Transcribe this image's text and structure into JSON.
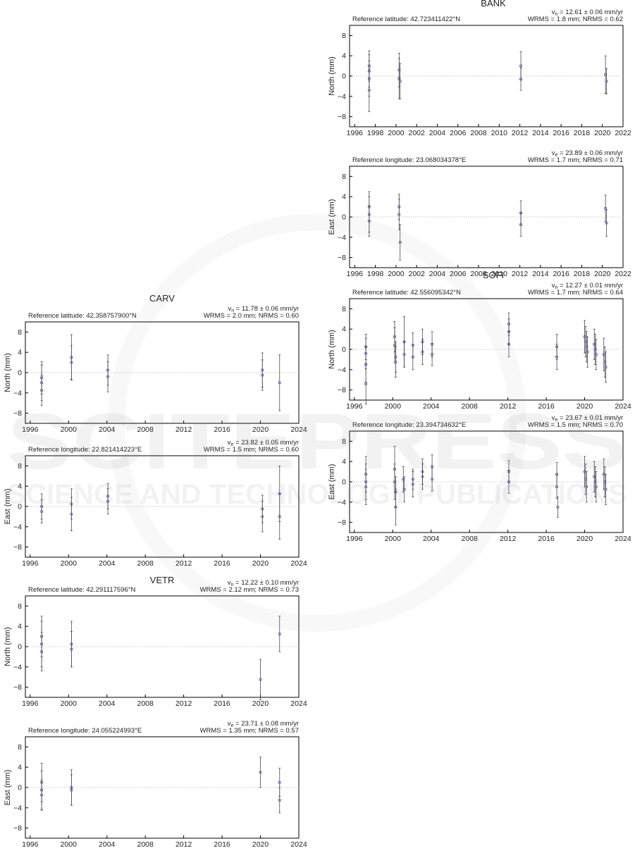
{
  "colors": {
    "point": "#6a56c9",
    "errorbar": "#333333",
    "zero_line": "#bdbdbd",
    "frame": "#000000",
    "grid": "#e2e2e2"
  },
  "watermark": {
    "line1": "SCITEPRESS",
    "line2": "SCIENCE AND TECHNOLOGY PUBLICATIONS"
  },
  "chart_data": [
    {
      "id": "bank-north",
      "station": "BANK",
      "type": "scatter",
      "ref_text": "Reference latitude: 42.723411422°N",
      "vel_prefix": "v",
      "vel_sub": "n",
      "vel_text": " = 12.61 ± 0.06 mm/yr",
      "stats_text": "WRMS = 1.8 mm; NRMS = 0.62",
      "ylabel": "North (mm)",
      "xlim": [
        1995.5,
        2022
      ],
      "ylim": [
        -10,
        10
      ],
      "xticks": [
        1996,
        1998,
        2000,
        2002,
        2004,
        2006,
        2008,
        2010,
        2012,
        2014,
        2016,
        2018,
        2020,
        2022
      ],
      "yticks": [
        8,
        4,
        0,
        -4,
        -8
      ],
      "points": [
        {
          "x": 1997.4,
          "y": 2.0,
          "err": 3.0
        },
        {
          "x": 1997.4,
          "y": 1.0,
          "err": 3.2
        },
        {
          "x": 1997.4,
          "y": -0.5,
          "err": 3.5
        },
        {
          "x": 1997.4,
          "y": -2.8,
          "err": 4.2
        },
        {
          "x": 2000.3,
          "y": -0.5,
          "err": 4.0
        },
        {
          "x": 2000.3,
          "y": 1.2,
          "err": 3.3
        },
        {
          "x": 2000.4,
          "y": -1.0,
          "err": 3.5
        },
        {
          "x": 2012.1,
          "y": 2.0,
          "err": 2.8
        },
        {
          "x": 2012.1,
          "y": -0.6,
          "err": 2.2
        },
        {
          "x": 2020.3,
          "y": 0.3,
          "err": 3.7
        },
        {
          "x": 2020.4,
          "y": -1.0,
          "err": 2.5
        }
      ]
    },
    {
      "id": "bank-east",
      "station": "BANK",
      "type": "scatter",
      "ref_text": "Reference longitude: 23.068034378°E",
      "vel_prefix": "v",
      "vel_sub": "e",
      "vel_text": " = 23.89 ± 0.06 mm/yr",
      "stats_text": "WRMS = 1.7 mm; NRMS = 0.71",
      "ylabel": "East (mm)",
      "xlim": [
        1995.5,
        2022
      ],
      "ylim": [
        -10,
        10
      ],
      "xticks": [
        1996,
        1998,
        2000,
        2002,
        2004,
        2006,
        2008,
        2010,
        2012,
        2014,
        2016,
        2018,
        2020,
        2022
      ],
      "yticks": [
        8,
        4,
        0,
        -4,
        -8
      ],
      "points": [
        {
          "x": 1997.4,
          "y": 2.0,
          "err": 3.0
        },
        {
          "x": 1997.4,
          "y": 0.5,
          "err": 3.5
        },
        {
          "x": 1997.4,
          "y": -0.8,
          "err": 3.0
        },
        {
          "x": 2000.3,
          "y": 2.0,
          "err": 2.5
        },
        {
          "x": 2000.3,
          "y": 0.5,
          "err": 3.0
        },
        {
          "x": 2000.4,
          "y": -5.0,
          "err": 3.5
        },
        {
          "x": 2012.1,
          "y": 0.8,
          "err": 2.4
        },
        {
          "x": 2012.1,
          "y": -1.5,
          "err": 2.3
        },
        {
          "x": 2020.3,
          "y": 1.7,
          "err": 2.6
        },
        {
          "x": 2020.4,
          "y": -1.2,
          "err": 2.6
        }
      ]
    },
    {
      "id": "sofi-north",
      "station": "SOFI",
      "type": "scatter",
      "ref_text": "Reference latitude: 42.556095342°N",
      "vel_prefix": "v",
      "vel_sub": "n",
      "vel_text": " = 12.27 ± 0.01 mm/yr",
      "stats_text": "WRMS = 1.7 mm; NRMS = 0.64",
      "ylabel": "North (mm)",
      "xlim": [
        1995.5,
        2024
      ],
      "ylim": [
        -10,
        10
      ],
      "xticks": [
        1996,
        2000,
        2004,
        2008,
        2012,
        2016,
        2020,
        2024
      ],
      "yticks": [
        8,
        4,
        0,
        -4,
        -8
      ],
      "points": [
        {
          "x": 1997.2,
          "y": 0.5,
          "err": 2.5
        },
        {
          "x": 1997.2,
          "y": -0.8,
          "err": 3.0
        },
        {
          "x": 1997.2,
          "y": -3.0,
          "err": 3.5
        },
        {
          "x": 1997.2,
          "y": -6.8,
          "err": 4.0
        },
        {
          "x": 2000.2,
          "y": 2.5,
          "err": 3.0
        },
        {
          "x": 2000.2,
          "y": 0.8,
          "err": 3.5
        },
        {
          "x": 2000.3,
          "y": -1.5,
          "err": 3.0
        },
        {
          "x": 2000.3,
          "y": -2.5,
          "err": 3.0
        },
        {
          "x": 2001.2,
          "y": 1.5,
          "err": 5.0
        },
        {
          "x": 2001.2,
          "y": -1.0,
          "err": 2.5
        },
        {
          "x": 2002.1,
          "y": 0.8,
          "err": 2.5
        },
        {
          "x": 2002.1,
          "y": -1.5,
          "err": 2.5
        },
        {
          "x": 2003.1,
          "y": 1.5,
          "err": 2.5
        },
        {
          "x": 2003.1,
          "y": -0.5,
          "err": 2.5
        },
        {
          "x": 2004.1,
          "y": 1.0,
          "err": 2.5
        },
        {
          "x": 2004.1,
          "y": -1.0,
          "err": 2.2
        },
        {
          "x": 2012.1,
          "y": 5.0,
          "err": 2.2
        },
        {
          "x": 2012.1,
          "y": 3.5,
          "err": 2.5
        },
        {
          "x": 2012.1,
          "y": 1.0,
          "err": 2.5
        },
        {
          "x": 2017.1,
          "y": 0.5,
          "err": 2.5
        },
        {
          "x": 2017.1,
          "y": -1.5,
          "err": 2.5
        },
        {
          "x": 2020.0,
          "y": 2.5,
          "err": 3.2
        },
        {
          "x": 2020.1,
          "y": 1.5,
          "err": 3.0
        },
        {
          "x": 2020.2,
          "y": 0.5,
          "err": 3.0
        },
        {
          "x": 2020.3,
          "y": -0.5,
          "err": 3.0
        },
        {
          "x": 2021.0,
          "y": 1.0,
          "err": 3.0
        },
        {
          "x": 2021.1,
          "y": 0.0,
          "err": 3.0
        },
        {
          "x": 2021.2,
          "y": -1.0,
          "err": 3.0
        },
        {
          "x": 2022.0,
          "y": -1.0,
          "err": 3.2
        },
        {
          "x": 2022.1,
          "y": -2.5,
          "err": 3.0
        },
        {
          "x": 2022.2,
          "y": -3.5,
          "err": 3.0
        }
      ]
    },
    {
      "id": "sofi-east",
      "station": "SOFI",
      "type": "scatter",
      "ref_text": "Reference longitude: 23.394734632°E",
      "vel_prefix": "v",
      "vel_sub": "e",
      "vel_text": " = 23.67 ± 0.01 mm/yr",
      "stats_text": "WRMS = 1.5 mm; NRMS = 0.70",
      "ylabel": "East (mm)",
      "xlim": [
        1995.5,
        2024
      ],
      "ylim": [
        -10,
        10
      ],
      "xticks": [
        1996,
        2000,
        2004,
        2008,
        2012,
        2016,
        2020,
        2024
      ],
      "yticks": [
        8,
        4,
        0,
        -4,
        -8
      ],
      "points": [
        {
          "x": 1997.2,
          "y": 1.5,
          "err": 3.5
        },
        {
          "x": 1997.2,
          "y": 0.0,
          "err": 3.5
        },
        {
          "x": 1997.2,
          "y": -1.0,
          "err": 3.5
        },
        {
          "x": 2000.2,
          "y": 2.5,
          "err": 4.5
        },
        {
          "x": 2000.2,
          "y": 0.0,
          "err": 3.5
        },
        {
          "x": 2000.3,
          "y": -2.0,
          "err": 3.0
        },
        {
          "x": 2000.3,
          "y": -5.0,
          "err": 3.5
        },
        {
          "x": 2001.1,
          "y": 0.5,
          "err": 2.5
        },
        {
          "x": 2001.2,
          "y": -1.5,
          "err": 2.5
        },
        {
          "x": 2002.1,
          "y": 0.5,
          "err": 2.0
        },
        {
          "x": 2002.1,
          "y": -0.5,
          "err": 2.5
        },
        {
          "x": 2003.1,
          "y": 2.0,
          "err": 2.5
        },
        {
          "x": 2003.1,
          "y": 1.0,
          "err": 2.5
        },
        {
          "x": 2004.1,
          "y": 3.0,
          "err": 2.3
        },
        {
          "x": 2004.1,
          "y": 0.5,
          "err": 2.3
        },
        {
          "x": 2012.1,
          "y": 2.0,
          "err": 2.2
        },
        {
          "x": 2012.1,
          "y": 0.0,
          "err": 2.3
        },
        {
          "x": 2017.1,
          "y": 1.5,
          "err": 2.3
        },
        {
          "x": 2017.1,
          "y": -1.0,
          "err": 2.3
        },
        {
          "x": 2017.2,
          "y": -5.0,
          "err": 2.0
        },
        {
          "x": 2020.0,
          "y": 2.0,
          "err": 3.0
        },
        {
          "x": 2020.1,
          "y": 0.5,
          "err": 3.0
        },
        {
          "x": 2020.2,
          "y": -1.0,
          "err": 3.0
        },
        {
          "x": 2021.0,
          "y": 1.0,
          "err": 3.0
        },
        {
          "x": 2021.1,
          "y": 0.0,
          "err": 3.0
        },
        {
          "x": 2021.2,
          "y": -1.0,
          "err": 3.0
        },
        {
          "x": 2022.0,
          "y": 1.5,
          "err": 3.0
        },
        {
          "x": 2022.1,
          "y": 0.0,
          "err": 3.0
        },
        {
          "x": 2022.2,
          "y": -1.5,
          "err": 3.0
        }
      ]
    },
    {
      "id": "carv-north",
      "station": "CARV",
      "type": "scatter",
      "ref_text": "Reference latitude: 42.358757900°N",
      "vel_prefix": "v",
      "vel_sub": "n",
      "vel_text": " = 11.78 ± 0.06 mm/yr",
      "stats_text": "WRMS = 2.0 mm; NRMS = 0.60",
      "ylabel": "North (mm)",
      "xlim": [
        1995.5,
        2024
      ],
      "ylim": [
        -10,
        10
      ],
      "xticks": [
        1996,
        2000,
        2004,
        2008,
        2012,
        2016,
        2020,
        2024
      ],
      "yticks": [
        8,
        4,
        0,
        -4,
        -8
      ],
      "points": [
        {
          "x": 1997.2,
          "y": -1.0,
          "err": 3.2
        },
        {
          "x": 1997.2,
          "y": -2.0,
          "err": 3.5
        },
        {
          "x": 1997.2,
          "y": -3.5,
          "err": 3.0
        },
        {
          "x": 2000.3,
          "y": 3.0,
          "err": 4.5
        },
        {
          "x": 2000.3,
          "y": 2.0,
          "err": 3.3
        },
        {
          "x": 2004.1,
          "y": 0.5,
          "err": 3.0
        },
        {
          "x": 2004.1,
          "y": -0.8,
          "err": 3.0
        },
        {
          "x": 2020.2,
          "y": 0.5,
          "err": 3.4
        },
        {
          "x": 2020.2,
          "y": -0.5,
          "err": 3.0
        },
        {
          "x": 2022.0,
          "y": -2.0,
          "err": 5.5
        }
      ]
    },
    {
      "id": "carv-east",
      "station": "CARV",
      "type": "scatter",
      "ref_text": "Reference longitude: 22.821414223°E",
      "vel_prefix": "v",
      "vel_sub": "e",
      "vel_text": " = 23.82 ± 0.05 mm/yr",
      "stats_text": "WRMS = 1.5 mm; NRMS = 0.60",
      "ylabel": "East (mm)",
      "xlim": [
        1995.5,
        2024
      ],
      "ylim": [
        -10,
        10
      ],
      "xticks": [
        1996,
        2000,
        2004,
        2008,
        2012,
        2016,
        2020,
        2024
      ],
      "yticks": [
        8,
        4,
        0,
        -4,
        -8
      ],
      "points": [
        {
          "x": 1997.2,
          "y": 0.0,
          "err": 2.5
        },
        {
          "x": 1997.2,
          "y": -1.0,
          "err": 2.3
        },
        {
          "x": 2000.3,
          "y": 0.5,
          "err": 3.0
        },
        {
          "x": 2000.3,
          "y": -1.5,
          "err": 3.3
        },
        {
          "x": 2004.1,
          "y": 2.0,
          "err": 2.5
        },
        {
          "x": 2004.1,
          "y": 1.0,
          "err": 2.5
        },
        {
          "x": 2020.2,
          "y": -0.5,
          "err": 2.7
        },
        {
          "x": 2020.2,
          "y": -2.0,
          "err": 3.0
        },
        {
          "x": 2022.0,
          "y": -2.0,
          "err": 4.5
        },
        {
          "x": 2022.0,
          "y": 2.5,
          "err": 5.5
        }
      ]
    },
    {
      "id": "vetr-north",
      "station": "VETR",
      "type": "scatter",
      "ref_text": "Reference latitude: 42.291117596°N",
      "vel_prefix": "v",
      "vel_sub": "n",
      "vel_text": " = 12.22 ± 0.10 mm/yr",
      "stats_text": "WRMS = 2.12 mm; NRMS = 0.73",
      "ylabel": "North (mm)",
      "xlim": [
        1995.5,
        2024
      ],
      "ylim": [
        -10,
        10
      ],
      "xticks": [
        1996,
        2000,
        2004,
        2008,
        2012,
        2016,
        2020,
        2024
      ],
      "yticks": [
        8,
        4,
        0,
        -4,
        -8
      ],
      "points": [
        {
          "x": 1997.2,
          "y": 2.0,
          "err": 4.0
        },
        {
          "x": 1997.2,
          "y": 0.5,
          "err": 4.5
        },
        {
          "x": 1997.2,
          "y": -1.0,
          "err": 3.8
        },
        {
          "x": 2000.3,
          "y": 0.5,
          "err": 4.5
        },
        {
          "x": 2000.3,
          "y": -0.5,
          "err": 3.5
        },
        {
          "x": 2020.0,
          "y": -6.5,
          "err": 4.0
        },
        {
          "x": 2022.0,
          "y": 2.5,
          "err": 3.5
        }
      ]
    },
    {
      "id": "vetr-east",
      "station": "VETR",
      "type": "scatter",
      "ref_text": "Reference longitude: 24.055224993°E",
      "vel_prefix": "v",
      "vel_sub": "e",
      "vel_text": " = 23.71 ± 0.08 mm/yr",
      "stats_text": "WRMS = 1.35 mm; NRMS = 0.57",
      "ylabel": "East (mm)",
      "xlim": [
        1995.5,
        2024
      ],
      "ylim": [
        -10,
        10
      ],
      "xticks": [
        1996,
        2000,
        2004,
        2008,
        2012,
        2016,
        2020,
        2024
      ],
      "yticks": [
        8,
        4,
        0,
        -4,
        -8
      ],
      "points": [
        {
          "x": 1997.2,
          "y": 1.0,
          "err": 3.8
        },
        {
          "x": 1997.2,
          "y": -0.5,
          "err": 3.8
        },
        {
          "x": 1997.2,
          "y": -1.5,
          "err": 3.0
        },
        {
          "x": 2000.3,
          "y": 0.0,
          "err": 3.5
        },
        {
          "x": 2000.3,
          "y": -0.5,
          "err": 3.0
        },
        {
          "x": 2020.0,
          "y": 3.0,
          "err": 3.0
        },
        {
          "x": 2022.0,
          "y": 1.0,
          "err": 2.8
        },
        {
          "x": 2022.0,
          "y": -2.5,
          "err": 2.5
        }
      ]
    }
  ]
}
